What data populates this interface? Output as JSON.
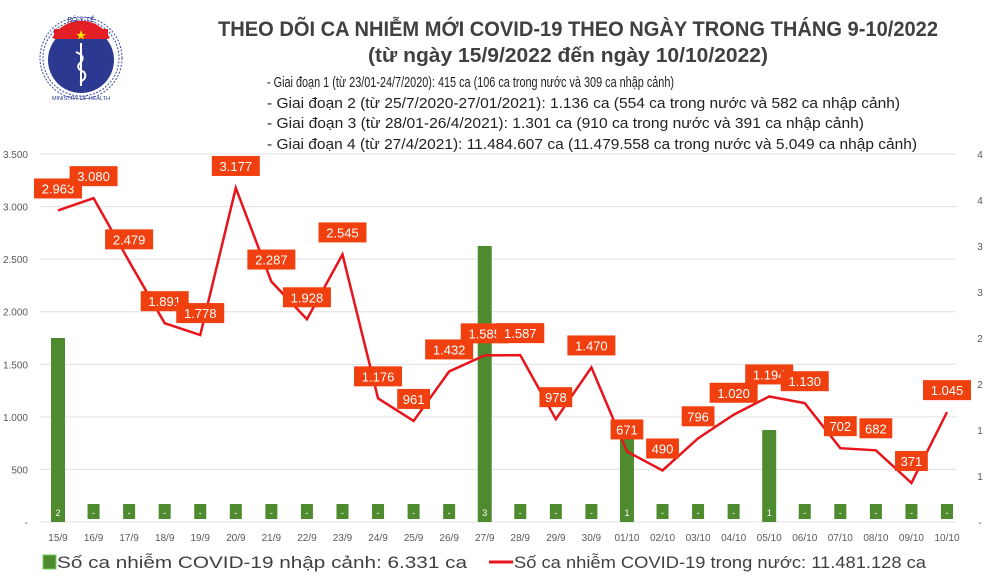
{
  "logo": {
    "text_top": "BỘ Y TẾ",
    "text_bottom": "MINISTRY OF HEALTH",
    "colors": {
      "blue": "#2b3990",
      "red": "#e31e24",
      "star": "#ffde00"
    }
  },
  "chart_data": {
    "type": "bar+line",
    "title": "THEO DÕI CA NHIỄM MỚI COVID-19 THEO NGÀY TRONG THÁNG 9-10/2022",
    "subtitle": "(từ ngày 15/9/2022 đến ngày 10/10/2022)",
    "notes": [
      "- Giai đoạn 1 (từ 23/01-24/7/2020): 415 ca (106 ca trong nước và 309 ca nhập cảnh)",
      "- Giai đoạn 2 (từ 25/7/2020-27/01/2021): 1.136 ca (554 ca trong nước và 582 ca nhập cảnh)",
      "- Giai đoạn 3 (từ 28/01-26/4/2021): 1.301 ca (910 ca trong nước và 391 ca nhập cảnh)",
      "- Giai đoạn 4 (từ 27/4/2021): 11.484.607 ca (11.479.558 ca trong nước và 5.049 ca nhập cảnh)"
    ],
    "categories": [
      "15/9",
      "16/9",
      "17/9",
      "18/9",
      "19/9",
      "20/9",
      "21/9",
      "22/9",
      "23/9",
      "24/9",
      "25/9",
      "26/9",
      "27/9",
      "28/9",
      "29/9",
      "30/9",
      "01/10",
      "02/10",
      "03/10",
      "04/10",
      "05/10",
      "06/10",
      "07/10",
      "08/10",
      "09/10",
      "10/10"
    ],
    "series": [
      {
        "name": "Số ca nhiễm COVID-19 nhập cảnh: 6.331 ca",
        "type": "bar",
        "axis": "right",
        "color": "#4e8a2e",
        "values": [
          2,
          0,
          0,
          0,
          0,
          0,
          0,
          0,
          0,
          0,
          0,
          0,
          3,
          0,
          0,
          0,
          1,
          0,
          0,
          0,
          1,
          0,
          0,
          0,
          0,
          0
        ]
      },
      {
        "name": "Số ca nhiễm COVID-19 trong nước: 11.481.128 ca",
        "type": "line",
        "axis": "left",
        "color": "#e8141b",
        "values": [
          2963,
          3080,
          2479,
          1891,
          1778,
          3177,
          2287,
          1928,
          2545,
          1176,
          961,
          1432,
          1585,
          1587,
          978,
          1470,
          671,
          490,
          796,
          1020,
          1194,
          1130,
          702,
          682,
          371,
          1045
        ]
      }
    ],
    "data_label_color": "#f0400f",
    "y_left": {
      "range": [
        0,
        3500
      ],
      "ticks": [
        "-",
        "500",
        "1.000",
        "1.500",
        "2.000",
        "2.500",
        "3.000",
        "3.500"
      ]
    },
    "y_right": {
      "range": [
        0,
        4
      ],
      "ticks": [
        "-",
        "1",
        "1",
        "2",
        "2",
        "3",
        "3",
        "4",
        "4"
      ]
    },
    "grid": true,
    "legend": "bottom"
  }
}
